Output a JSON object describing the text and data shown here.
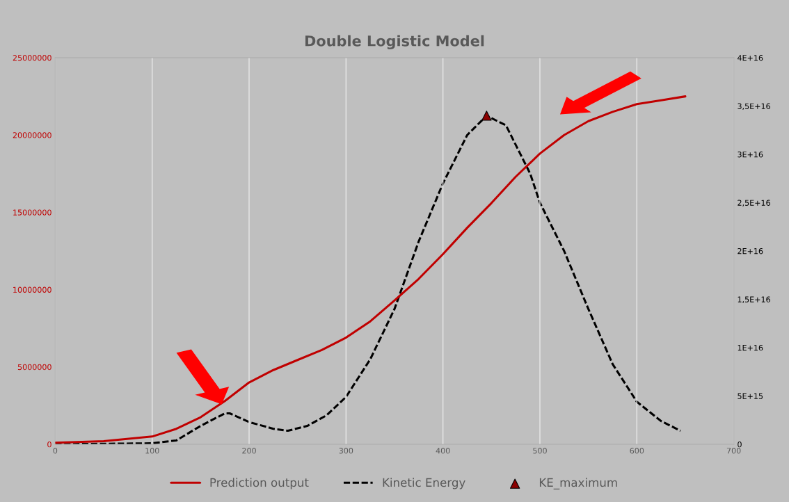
{
  "chart_data": {
    "type": "line",
    "title": "Double Logistic Model",
    "xlim": [
      0,
      700
    ],
    "xticks": [
      0,
      100,
      200,
      300,
      400,
      500,
      600,
      700
    ],
    "ylim": [
      0,
      25000000
    ],
    "yticks": [
      0,
      5000000,
      10000000,
      15000000,
      20000000,
      25000000
    ],
    "y2lim": [
      0,
      4e+16
    ],
    "y2ticks": [
      0,
      {
        "value": 5000000000000000.0,
        "label": "5E+15"
      },
      {
        "value": 1e+16,
        "label": "1E+16"
      },
      {
        "value": 1.5e+16,
        "label": "1,5E+16"
      },
      {
        "value": 2e+16,
        "label": "2E+16"
      },
      {
        "value": 2.5e+16,
        "label": "2,5E+16"
      },
      {
        "value": 3e+16,
        "label": "3E+16"
      },
      {
        "value": 3.5e+16,
        "label": "3,5E+16"
      },
      {
        "value": 4e+16,
        "label": "4E+16"
      }
    ],
    "grid": "x",
    "legend": "bottom",
    "series": [
      {
        "name": "Prediction output",
        "color": "#c00000",
        "line_style": "solid",
        "marker": "none",
        "x": [
          0,
          50,
          100,
          125,
          150,
          175,
          200,
          225,
          250,
          275,
          300,
          325,
          350,
          375,
          400,
          425,
          450,
          475,
          500,
          525,
          550,
          575,
          600,
          625,
          650
        ],
        "values": [
          100000,
          200000,
          500000,
          1000000,
          1750000,
          2800000,
          4000000,
          4800000,
          5450000,
          6100000,
          6900000,
          7950000,
          9300000,
          10700000,
          12300000,
          14000000,
          15600000,
          17300000,
          18800000,
          20000000,
          20900000,
          21500000,
          22000000,
          22250000,
          22500000
        ]
      },
      {
        "name": "Kinetic Energy",
        "color": "#000000",
        "axis": "y2",
        "line_style": "dashed",
        "marker": "none",
        "x": [
          0,
          100,
          125,
          150,
          175,
          180,
          200,
          225,
          240,
          260,
          280,
          300,
          325,
          350,
          375,
          400,
          425,
          445,
          465,
          490,
          500,
          525,
          550,
          575,
          600,
          625,
          645
        ],
        "values": [
          0,
          100000000000000.0,
          400000000000000.0,
          1900000000000000.0,
          3200000000000000.0,
          3200000000000000.0,
          2300000000000000.0,
          1600000000000000.0,
          1400000000000000.0,
          1900000000000000.0,
          3000000000000000.0,
          4900000000000000.0,
          8800000000000000.0,
          1.4e+16,
          2.1e+16,
          2.7e+16,
          3.2e+16,
          3.4e+16,
          3.3e+16,
          2.8e+16,
          2.5e+16,
          2e+16,
          1.4e+16,
          8300000000000000.0,
          4400000000000000.0,
          2400000000000000.0,
          1400000000000000.0
        ]
      },
      {
        "name": "KE_maximum",
        "color": "#8b0000",
        "type": "scatter",
        "axis": "y2",
        "marker": "triangle",
        "x": [
          445
        ],
        "values": [
          3.4e+16
        ]
      }
    ]
  }
}
